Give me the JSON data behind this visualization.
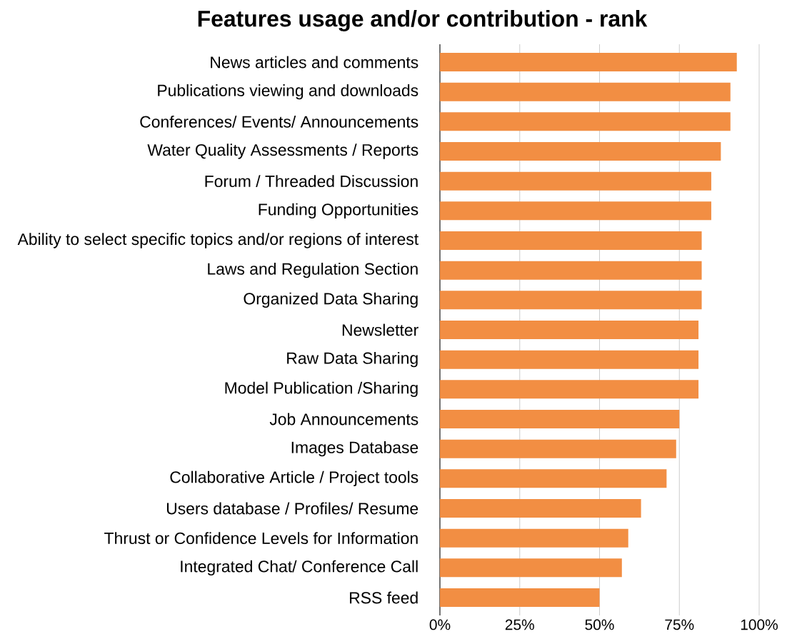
{
  "chart_data": {
    "type": "bar",
    "orientation": "horizontal",
    "title": "Features usage and/or contribution - rank",
    "categories": [
      "News articles and comments",
      "Publications viewing and downloads",
      "Conferences/ Events/ Announcements",
      "Water Quality Assessments / Reports",
      "Forum / Threaded Discussion",
      "Funding Opportunities",
      "Ability to select specific topics and/or regions of interest",
      "Laws and Regulation Section",
      "Organized Data Sharing",
      "Newsletter",
      "Raw Data Sharing",
      "Model Publication /Sharing",
      "Job Announcements",
      "Images Database",
      "Collaborative Article / Project tools",
      "Users database / Profiles/ Resume",
      "Thrust or Confidence Levels for Information",
      "Integrated Chat/ Conference Call",
      "RSS feed"
    ],
    "values": [
      93,
      91,
      91,
      88,
      85,
      85,
      82,
      82,
      82,
      81,
      81,
      81,
      75,
      74,
      71,
      63,
      59,
      57,
      50
    ],
    "color": "#f28e43",
    "xlim": [
      0,
      100
    ],
    "xticks": [
      {
        "value": 0,
        "label": "0%"
      },
      {
        "value": 25,
        "label": "25%"
      },
      {
        "value": 50,
        "label": "50%"
      },
      {
        "value": 75,
        "label": "75%"
      },
      {
        "value": 100,
        "label": "100%"
      }
    ],
    "grid": "x"
  }
}
